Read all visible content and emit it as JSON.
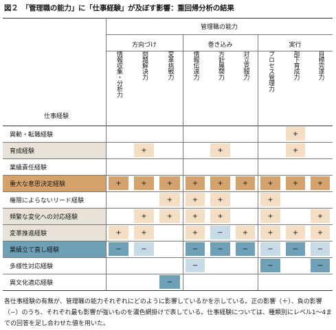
{
  "title": "図２　「管理職の能力」に「仕事経験」が及ぼす影響：重回帰分析の結果",
  "header": {
    "group_title": "管理職の能力",
    "groups": [
      {
        "label": "方向づけ"
      },
      {
        "label": "巻き込み"
      },
      {
        "label": "実行"
      }
    ],
    "columns": [
      {
        "label": "情報収集・分析力"
      },
      {
        "label": "問題解決力"
      },
      {
        "label": "変革挑戦力"
      },
      {
        "label": "情報伝達力"
      },
      {
        "label": "方針展開力"
      },
      {
        "label": "対立克服力"
      },
      {
        "label": "プロセス管理力"
      },
      {
        "label": "部下育成力"
      },
      {
        "label": "目標完遂力"
      }
    ],
    "row_header": "仕事経験"
  },
  "colors": {
    "pos_light": "#f3dec4",
    "pos_dark": "#d4a36c",
    "neg_light": "#c7dbe6",
    "neg_dark": "#6ea0b8",
    "label_bg": "#e8e2d8",
    "label_dark": "#d4a36c",
    "label_blue": "#6ea0b8"
  },
  "rows": [
    {
      "label": "異動・転職経験",
      "style": "plain",
      "cells": [
        "",
        "",
        "",
        "",
        "",
        "",
        "",
        "+L",
        ""
      ]
    },
    {
      "label": "育成経験",
      "style": "tint",
      "cells": [
        "",
        "+L",
        "",
        "",
        "+L",
        "",
        "",
        "+L",
        ""
      ]
    },
    {
      "label": "業績責任経験",
      "style": "plain",
      "cells": [
        "",
        "",
        "",
        "",
        "",
        "",
        "",
        "",
        ""
      ]
    },
    {
      "label": "重大な意思決定経験",
      "style": "dark",
      "cells": [
        "+D",
        "+D",
        "+D",
        "+D",
        "+D",
        "+D",
        "+D",
        "+D",
        "+D"
      ]
    },
    {
      "label": "権限によらないリード経験",
      "style": "plain",
      "cells": [
        "",
        "",
        "+L",
        "+L",
        "+L",
        "",
        "+L",
        "",
        ""
      ]
    },
    {
      "label": "頻繁な変化への対応経験",
      "style": "tint",
      "cells": [
        "",
        "+L",
        "+L",
        "+L",
        "+L",
        "",
        "+L",
        "",
        "+L"
      ]
    },
    {
      "label": "変革推進経験",
      "style": "tint",
      "cells": [
        "+L",
        "+L",
        "",
        "+L",
        "−B",
        "+L",
        "+L",
        "+L",
        "+L"
      ]
    },
    {
      "label": "業績立て直し経験",
      "style": "blue",
      "cells": [
        "−D",
        "−B",
        "",
        "−D",
        "−D",
        "−D",
        "−B",
        "−D",
        "−B"
      ]
    },
    {
      "label": "多様性対応経験",
      "style": "plain",
      "cells": [
        "",
        "",
        "",
        "−B",
        "",
        "",
        "−D",
        "",
        "−D"
      ]
    },
    {
      "label": "異文化適応経験",
      "style": "plain",
      "cells": [
        "",
        "",
        "−D",
        "",
        "",
        "",
        "",
        "",
        ""
      ]
    }
  ],
  "note": "各仕事経験の有無が、管理職の能力それぞれにどのように影響しているかを示している。正の影響（＋）、負の影響（−）のうち、それぞれ最も影響が強いものを濃色網掛けで表している。仕事経験については、種類別にレベル1〜4までの回答を足し合わせた値を用いた。"
}
